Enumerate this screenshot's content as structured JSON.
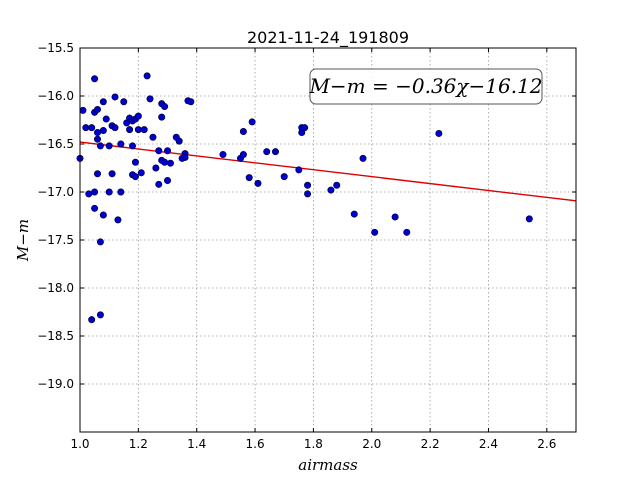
{
  "chart_data": {
    "type": "scatter",
    "title": "2021-11-24_191809",
    "xlabel": "airmass",
    "ylabel": "M−m",
    "xlim": [
      1.0,
      2.7
    ],
    "ylim": [
      -15.5,
      -19.5
    ],
    "y_inverted": true,
    "grid": true,
    "xticks": [
      "1.0",
      "1.2",
      "1.4",
      "1.6",
      "1.8",
      "2.0",
      "2.2",
      "2.4",
      "2.6"
    ],
    "yticks": [
      "−15.5",
      "−16.0",
      "−16.5",
      "−17.0",
      "−17.5",
      "−18.0",
      "−18.5",
      "−19.0"
    ],
    "point_color": "#0000cc",
    "fit_color": "#dd0000",
    "fit_line": {
      "slope": -0.36,
      "intercept": -16.12
    },
    "annotation": "M−m = −0.36χ−16.12",
    "points": [
      [
        1.0,
        -16.65
      ],
      [
        1.01,
        -16.15
      ],
      [
        1.02,
        -16.33
      ],
      [
        1.03,
        -17.02
      ],
      [
        1.04,
        -16.33
      ],
      [
        1.04,
        -18.33
      ],
      [
        1.05,
        -17.0
      ],
      [
        1.05,
        -17.17
      ],
      [
        1.05,
        -15.82
      ],
      [
        1.05,
        -16.17
      ],
      [
        1.06,
        -16.14
      ],
      [
        1.06,
        -16.38
      ],
      [
        1.06,
        -16.45
      ],
      [
        1.06,
        -16.81
      ],
      [
        1.07,
        -16.52
      ],
      [
        1.07,
        -17.52
      ],
      [
        1.07,
        -18.28
      ],
      [
        1.08,
        -17.24
      ],
      [
        1.08,
        -16.06
      ],
      [
        1.08,
        -16.36
      ],
      [
        1.09,
        -16.24
      ],
      [
        1.1,
        -16.52
      ],
      [
        1.1,
        -17.0
      ],
      [
        1.11,
        -16.31
      ],
      [
        1.11,
        -16.81
      ],
      [
        1.12,
        -16.01
      ],
      [
        1.12,
        -16.33
      ],
      [
        1.13,
        -17.29
      ],
      [
        1.14,
        -17.0
      ],
      [
        1.14,
        -16.5
      ],
      [
        1.15,
        -16.06
      ],
      [
        1.16,
        -16.28
      ],
      [
        1.17,
        -16.23
      ],
      [
        1.17,
        -16.35
      ],
      [
        1.18,
        -16.26
      ],
      [
        1.18,
        -16.52
      ],
      [
        1.18,
        -16.82
      ],
      [
        1.19,
        -16.69
      ],
      [
        1.19,
        -16.24
      ],
      [
        1.19,
        -16.84
      ],
      [
        1.2,
        -16.35
      ],
      [
        1.2,
        -16.21
      ],
      [
        1.21,
        -16.8
      ],
      [
        1.22,
        -16.35
      ],
      [
        1.23,
        -15.79
      ],
      [
        1.24,
        -16.03
      ],
      [
        1.25,
        -16.43
      ],
      [
        1.26,
        -16.75
      ],
      [
        1.27,
        -16.57
      ],
      [
        1.27,
        -16.92
      ],
      [
        1.28,
        -16.08
      ],
      [
        1.28,
        -16.22
      ],
      [
        1.28,
        -16.67
      ],
      [
        1.29,
        -16.11
      ],
      [
        1.29,
        -16.69
      ],
      [
        1.3,
        -16.57
      ],
      [
        1.3,
        -16.88
      ],
      [
        1.31,
        -16.7
      ],
      [
        1.33,
        -16.43
      ],
      [
        1.34,
        -16.47
      ],
      [
        1.35,
        -16.65
      ],
      [
        1.36,
        -16.6
      ],
      [
        1.36,
        -16.64
      ],
      [
        1.37,
        -16.05
      ],
      [
        1.38,
        -16.06
      ],
      [
        1.49,
        -16.61
      ],
      [
        1.55,
        -16.65
      ],
      [
        1.56,
        -16.37
      ],
      [
        1.56,
        -16.61
      ],
      [
        1.58,
        -16.85
      ],
      [
        1.59,
        -16.27
      ],
      [
        1.61,
        -16.91
      ],
      [
        1.64,
        -16.58
      ],
      [
        1.67,
        -16.58
      ],
      [
        1.7,
        -16.84
      ],
      [
        1.75,
        -16.77
      ],
      [
        1.76,
        -16.33
      ],
      [
        1.76,
        -16.38
      ],
      [
        1.77,
        -16.33
      ],
      [
        1.78,
        -17.02
      ],
      [
        1.78,
        -16.93
      ],
      [
        1.86,
        -16.98
      ],
      [
        1.88,
        -16.93
      ],
      [
        1.94,
        -17.23
      ],
      [
        1.97,
        -16.65
      ],
      [
        2.01,
        -17.42
      ],
      [
        2.08,
        -17.26
      ],
      [
        2.12,
        -17.42
      ],
      [
        2.23,
        -16.39
      ],
      [
        2.54,
        -17.28
      ]
    ]
  }
}
